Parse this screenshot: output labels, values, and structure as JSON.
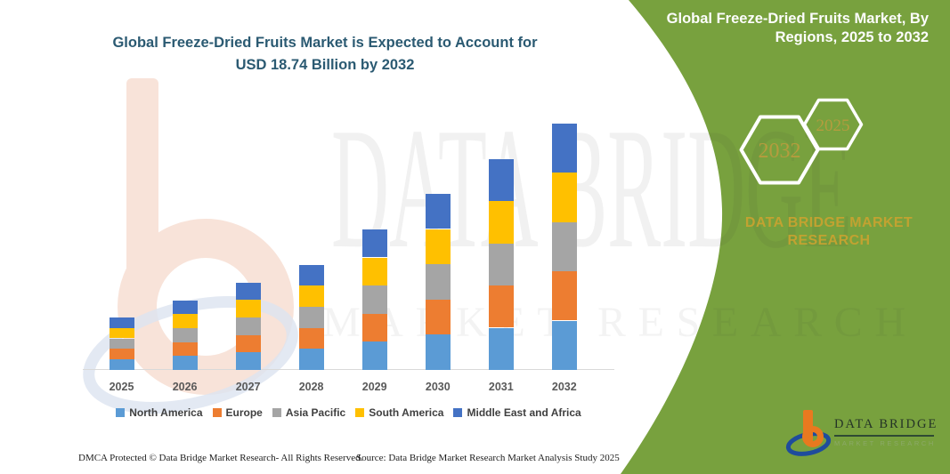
{
  "main_title": {
    "line1": "Global Freeze-Dried Fruits Market is Expected to Account for",
    "line2": "USD 18.74 Billion by 2032"
  },
  "side_panel": {
    "heading_line1": "Global Freeze-Dried Fruits Market, By",
    "heading_line2": "Regions, 2025 to 2032",
    "hex_back_year": "2032",
    "hex_front_year": "2025",
    "brand_line1": "DATA BRIDGE MARKET",
    "brand_line2": "RESEARCH",
    "panel_color": "#78A13E",
    "gold_text_color": "#C2A231"
  },
  "watermark": {
    "big_text": "DATA BRIDGE",
    "sub_text": "MARKET RESEARCH"
  },
  "chart_data": {
    "type": "bar",
    "stacked": true,
    "title": "Global Freeze-Dried Fruits Market is Expected to Account for USD 18.74 Billion by 2032",
    "unit": "USD Billion",
    "categories": [
      "2025",
      "2026",
      "2027",
      "2028",
      "2029",
      "2030",
      "2031",
      "2032"
    ],
    "series": [
      {
        "name": "North America",
        "color": "#5B9BD5",
        "values": [
          0.8,
          1.06,
          1.33,
          1.6,
          2.14,
          2.68,
          3.21,
          3.75
        ]
      },
      {
        "name": "Europe",
        "color": "#ED7D31",
        "values": [
          0.8,
          1.06,
          1.33,
          1.6,
          2.14,
          2.68,
          3.21,
          3.75
        ]
      },
      {
        "name": "Asia Pacific",
        "color": "#A5A5A5",
        "values": [
          0.8,
          1.06,
          1.33,
          1.6,
          2.14,
          2.68,
          3.21,
          3.75
        ]
      },
      {
        "name": "South America",
        "color": "#FFC000",
        "values": [
          0.8,
          1.06,
          1.33,
          1.6,
          2.14,
          2.68,
          3.21,
          3.75
        ]
      },
      {
        "name": "Middle East and Africa",
        "color": "#4472C4",
        "values": [
          0.8,
          1.06,
          1.33,
          1.6,
          2.14,
          2.68,
          3.21,
          3.75
        ]
      }
    ],
    "totals": [
      3.99,
      5.28,
      6.63,
      7.98,
      10.69,
      13.4,
      16.03,
      18.74
    ],
    "ylim": [
      0,
      18.74
    ],
    "grid": false,
    "legend_position": "bottom"
  },
  "logo": {
    "name_text": "DATA BRIDGE",
    "sub_text": "MARKET RESEARCH"
  },
  "footer": {
    "left": "DMCA Protected © Data Bridge Market Research-  All Rights Reserved.",
    "right": "Source: Data Bridge Market Research  Market Analysis Study 2025"
  }
}
